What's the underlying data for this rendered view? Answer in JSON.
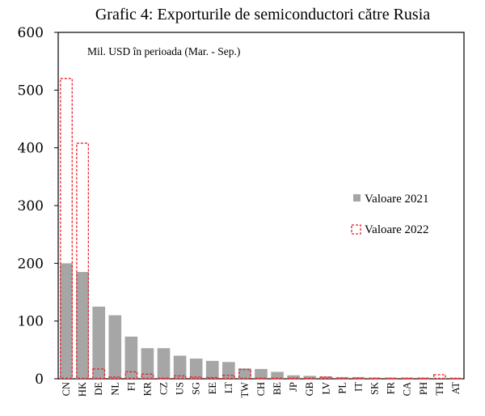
{
  "chart_data": {
    "type": "bar",
    "title": "Grafic 4: Exporturile de semiconductori către Rusia",
    "annotation": "Mil. USD în perioada (Mar. - Sep.)",
    "xlabel": "",
    "ylabel": "",
    "ylim": [
      0,
      600
    ],
    "yticks": [
      0,
      100,
      200,
      300,
      400,
      500,
      600
    ],
    "ytick_labels": [
      "0",
      "100",
      "200",
      "300",
      "400",
      "500",
      "600"
    ],
    "grid": false,
    "legend_position": "right",
    "categories": [
      "CN",
      "HK",
      "DE",
      "NL",
      "FI",
      "KR",
      "CZ",
      "US",
      "SG",
      "EE",
      "LT",
      "TW",
      "CH",
      "BE",
      "JP",
      "GB",
      "LV",
      "PL",
      "IT",
      "SK",
      "FR",
      "CA",
      "PH",
      "TH",
      "AT"
    ],
    "series": [
      {
        "name": "Valoare 2021",
        "style": "filled",
        "color": "#a6a6a6",
        "values": [
          200,
          185,
          125,
          110,
          73,
          53,
          53,
          40,
          35,
          31,
          29,
          18,
          17,
          12,
          6,
          5,
          4,
          3,
          3,
          2,
          2,
          2,
          2,
          1,
          1
        ]
      },
      {
        "name": "Valoare 2022",
        "style": "dashed-outline",
        "color": "#e8202a",
        "values": [
          520,
          408,
          17,
          3,
          12,
          8,
          1,
          5,
          3,
          2,
          6,
          16,
          1,
          1,
          1,
          1,
          3,
          1,
          1,
          1,
          1,
          1,
          1,
          7,
          1
        ]
      }
    ]
  }
}
